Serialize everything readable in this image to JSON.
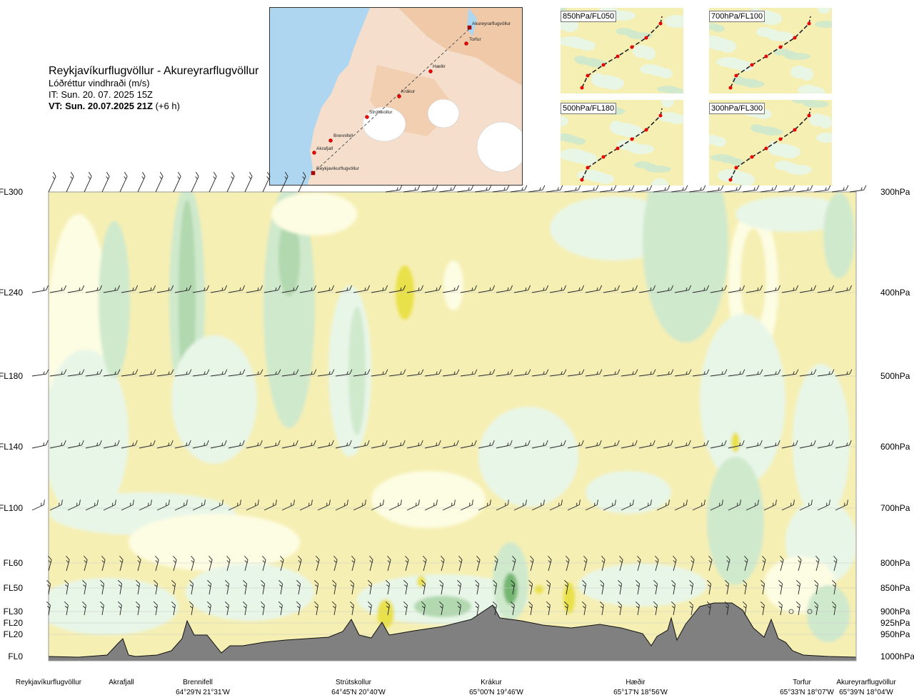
{
  "header": {
    "route": "Reykjavíkurflugvöllur - Akureyrarflugvöllur",
    "variable": "Lóðréttur vindhraði (m/s)",
    "issue_time": "IT: Sun. 20. 07. 2025 15Z",
    "valid_time": "VT: Sun. 20.07.2025 21Z",
    "lead": "(+6 h)"
  },
  "map": {
    "waypoints": [
      "Akureyrarflugvöllur",
      "Torfur",
      "Hæðir",
      "Krákur",
      "Strútskollur",
      "Brennifell",
      "Akrafjall",
      "Reykjavíkurflugvöllur"
    ]
  },
  "thumbnails": [
    {
      "label": "850hPa/FL050"
    },
    {
      "label": "700hPa/FL100"
    },
    {
      "label": "500hPa/FL180"
    },
    {
      "label": "300hPa/FL300"
    }
  ],
  "chart_data": {
    "type": "heatmap",
    "title": "",
    "y_levels": [
      {
        "fl": "FL300",
        "hpa": "300hPa",
        "p": 300
      },
      {
        "fl": "FL240",
        "hpa": "400hPa",
        "p": 400
      },
      {
        "fl": "FL180",
        "hpa": "500hPa",
        "p": 500
      },
      {
        "fl": "FL140",
        "hpa": "600hPa",
        "p": 600
      },
      {
        "fl": "FL100",
        "hpa": "700hPa",
        "p": 700
      },
      {
        "fl": "FL60",
        "hpa": "800hPa",
        "p": 800
      },
      {
        "fl": "FL50",
        "hpa": "850hPa",
        "p": 850
      },
      {
        "fl": "FL30",
        "hpa": "900hPa",
        "p": 900
      },
      {
        "fl": "FL20",
        "hpa": "925hPa",
        "p": 925
      },
      {
        "fl": "FL20",
        "hpa": "950hPa",
        "p": 950
      },
      {
        "fl": "FL0",
        "hpa": "1000hPa",
        "p": 1000
      }
    ],
    "x_locations": [
      {
        "name": "Reykjavíkurflugvöllur",
        "coord": "",
        "pos": 0.0
      },
      {
        "name": "Akrafjall",
        "coord": "",
        "pos": 0.09
      },
      {
        "name": "Brennifell",
        "coord": "64°29'N 21°31'W",
        "pos": 0.19
      },
      {
        "name": "Strútskollur",
        "coord": "64°45'N 20°40'W",
        "pos": 0.38
      },
      {
        "name": "Krákur",
        "coord": "65°00'N 19°46'W",
        "pos": 0.55
      },
      {
        "name": "Hæðir",
        "coord": "65°17'N 18°56'W",
        "pos": 0.74
      },
      {
        "name": "Torfur",
        "coord": "65°33'N 18°07'W",
        "pos": 0.94
      },
      {
        "name": "Akureyrarflugvöllur",
        "coord": "65°39'N 18°04'W",
        "pos": 1.0
      }
    ],
    "colors": {
      "up_weak": "#fdfde3",
      "up_moderate": "#f6efb4",
      "up_strong": "#e9e14a",
      "down_weak": "#e8f6e8",
      "down_moderate": "#cfe9cc",
      "down_strong": "#b1d8ae",
      "down_very": "#74b772",
      "terrain": "#808080"
    }
  }
}
